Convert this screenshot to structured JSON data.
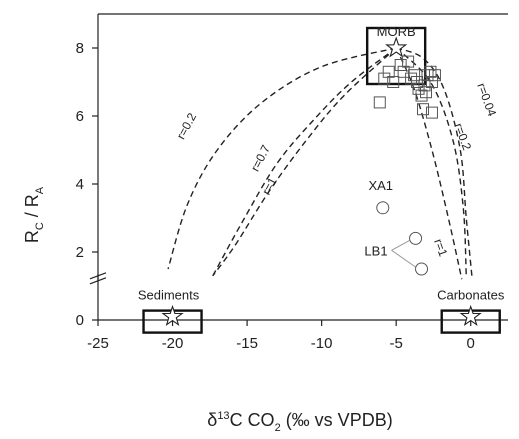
{
  "chart_data": {
    "type": "scatter",
    "title": "",
    "xlabel": {
      "delta": "δ",
      "sup": "13",
      "main": "C CO",
      "sub": "2",
      "tail": " (‰ vs VPDB)"
    },
    "ylabel": {
      "r1": "R",
      "s1": "C",
      "sep": " / R",
      "s2": "A"
    },
    "xlim": [
      -25,
      2.5
    ],
    "ylim": [
      0,
      9
    ],
    "x_ticks": [
      -25,
      -20,
      -15,
      -10,
      -5,
      0
    ],
    "y_ticks": [
      0,
      2,
      4,
      6,
      8
    ],
    "y_axis_break": 1.3,
    "grid": false,
    "series": [
      {
        "marker": "square",
        "points": [
          [
            -6.1,
            6.4
          ],
          [
            -5.8,
            7.1
          ],
          [
            -5.5,
            7.3
          ],
          [
            -5.2,
            7.0
          ],
          [
            -4.7,
            7.5
          ],
          [
            -4.5,
            7.3
          ],
          [
            -4.2,
            7.6
          ],
          [
            -4.0,
            7.1
          ],
          [
            -3.8,
            7.2
          ],
          [
            -3.6,
            7.0
          ],
          [
            -3.5,
            6.8
          ],
          [
            -3.3,
            6.6
          ],
          [
            -3.1,
            6.9
          ],
          [
            -2.9,
            7.2
          ],
          [
            -2.7,
            7.3
          ],
          [
            -2.6,
            7.0
          ],
          [
            -2.4,
            7.2
          ],
          [
            -3.2,
            6.2
          ],
          [
            -2.6,
            6.1
          ],
          [
            -3.0,
            6.7
          ]
        ]
      },
      {
        "marker": "circle",
        "points": [
          [
            -5.9,
            3.3
          ],
          [
            -3.7,
            2.4
          ],
          [
            -3.3,
            1.5
          ]
        ]
      }
    ],
    "end_members": [
      {
        "label": "MORB",
        "x": -5,
        "y": 8.0
      },
      {
        "label": "Sediments",
        "x": -20,
        "y": 0.1
      },
      {
        "label": "Carbonates",
        "x": 0,
        "y": 0.1
      }
    ],
    "mixing_curves": [
      {
        "label": "r=0.2",
        "points": [
          [
            -5,
            8
          ],
          [
            -10,
            7.45
          ],
          [
            -14,
            6.4
          ],
          [
            -17,
            5.0
          ],
          [
            -19,
            3.4
          ],
          [
            -20.3,
            1.5
          ]
        ]
      },
      {
        "label": "r=0.7",
        "points": [
          [
            -5,
            8
          ],
          [
            -8,
            7.0
          ],
          [
            -10.5,
            5.9
          ],
          [
            -13,
            4.6
          ],
          [
            -15.3,
            2.9
          ],
          [
            -17.3,
            1.3
          ]
        ]
      },
      {
        "label": "r=1",
        "points": [
          [
            -5,
            8
          ],
          [
            -8.5,
            6.6
          ],
          [
            -11,
            5.3
          ],
          [
            -13.5,
            3.8
          ],
          [
            -15.8,
            2.2
          ],
          [
            -17.3,
            1.3
          ]
        ]
      },
      {
        "label": "r=1",
        "points": [
          [
            -5,
            8
          ],
          [
            -3.8,
            6.8
          ],
          [
            -2.6,
            5.0
          ],
          [
            -1.5,
            3.0
          ],
          [
            -0.6,
            1.2
          ]
        ]
      },
      {
        "label": "r=0.2",
        "points": [
          [
            -5,
            8
          ],
          [
            -2.7,
            7.0
          ],
          [
            -1.2,
            5.3
          ],
          [
            -0.5,
            3.3
          ],
          [
            -0.3,
            1.3
          ]
        ]
      },
      {
        "label": "r=0.04",
        "points": [
          [
            -5,
            8
          ],
          [
            -3.2,
            7.7
          ],
          [
            -1.8,
            6.8
          ],
          [
            -0.7,
            5.0
          ],
          [
            -0.3,
            3.0
          ],
          [
            0.1,
            1.2
          ]
        ]
      }
    ],
    "annotations": [
      {
        "label": "XA1"
      },
      {
        "label": "LB1"
      }
    ]
  }
}
